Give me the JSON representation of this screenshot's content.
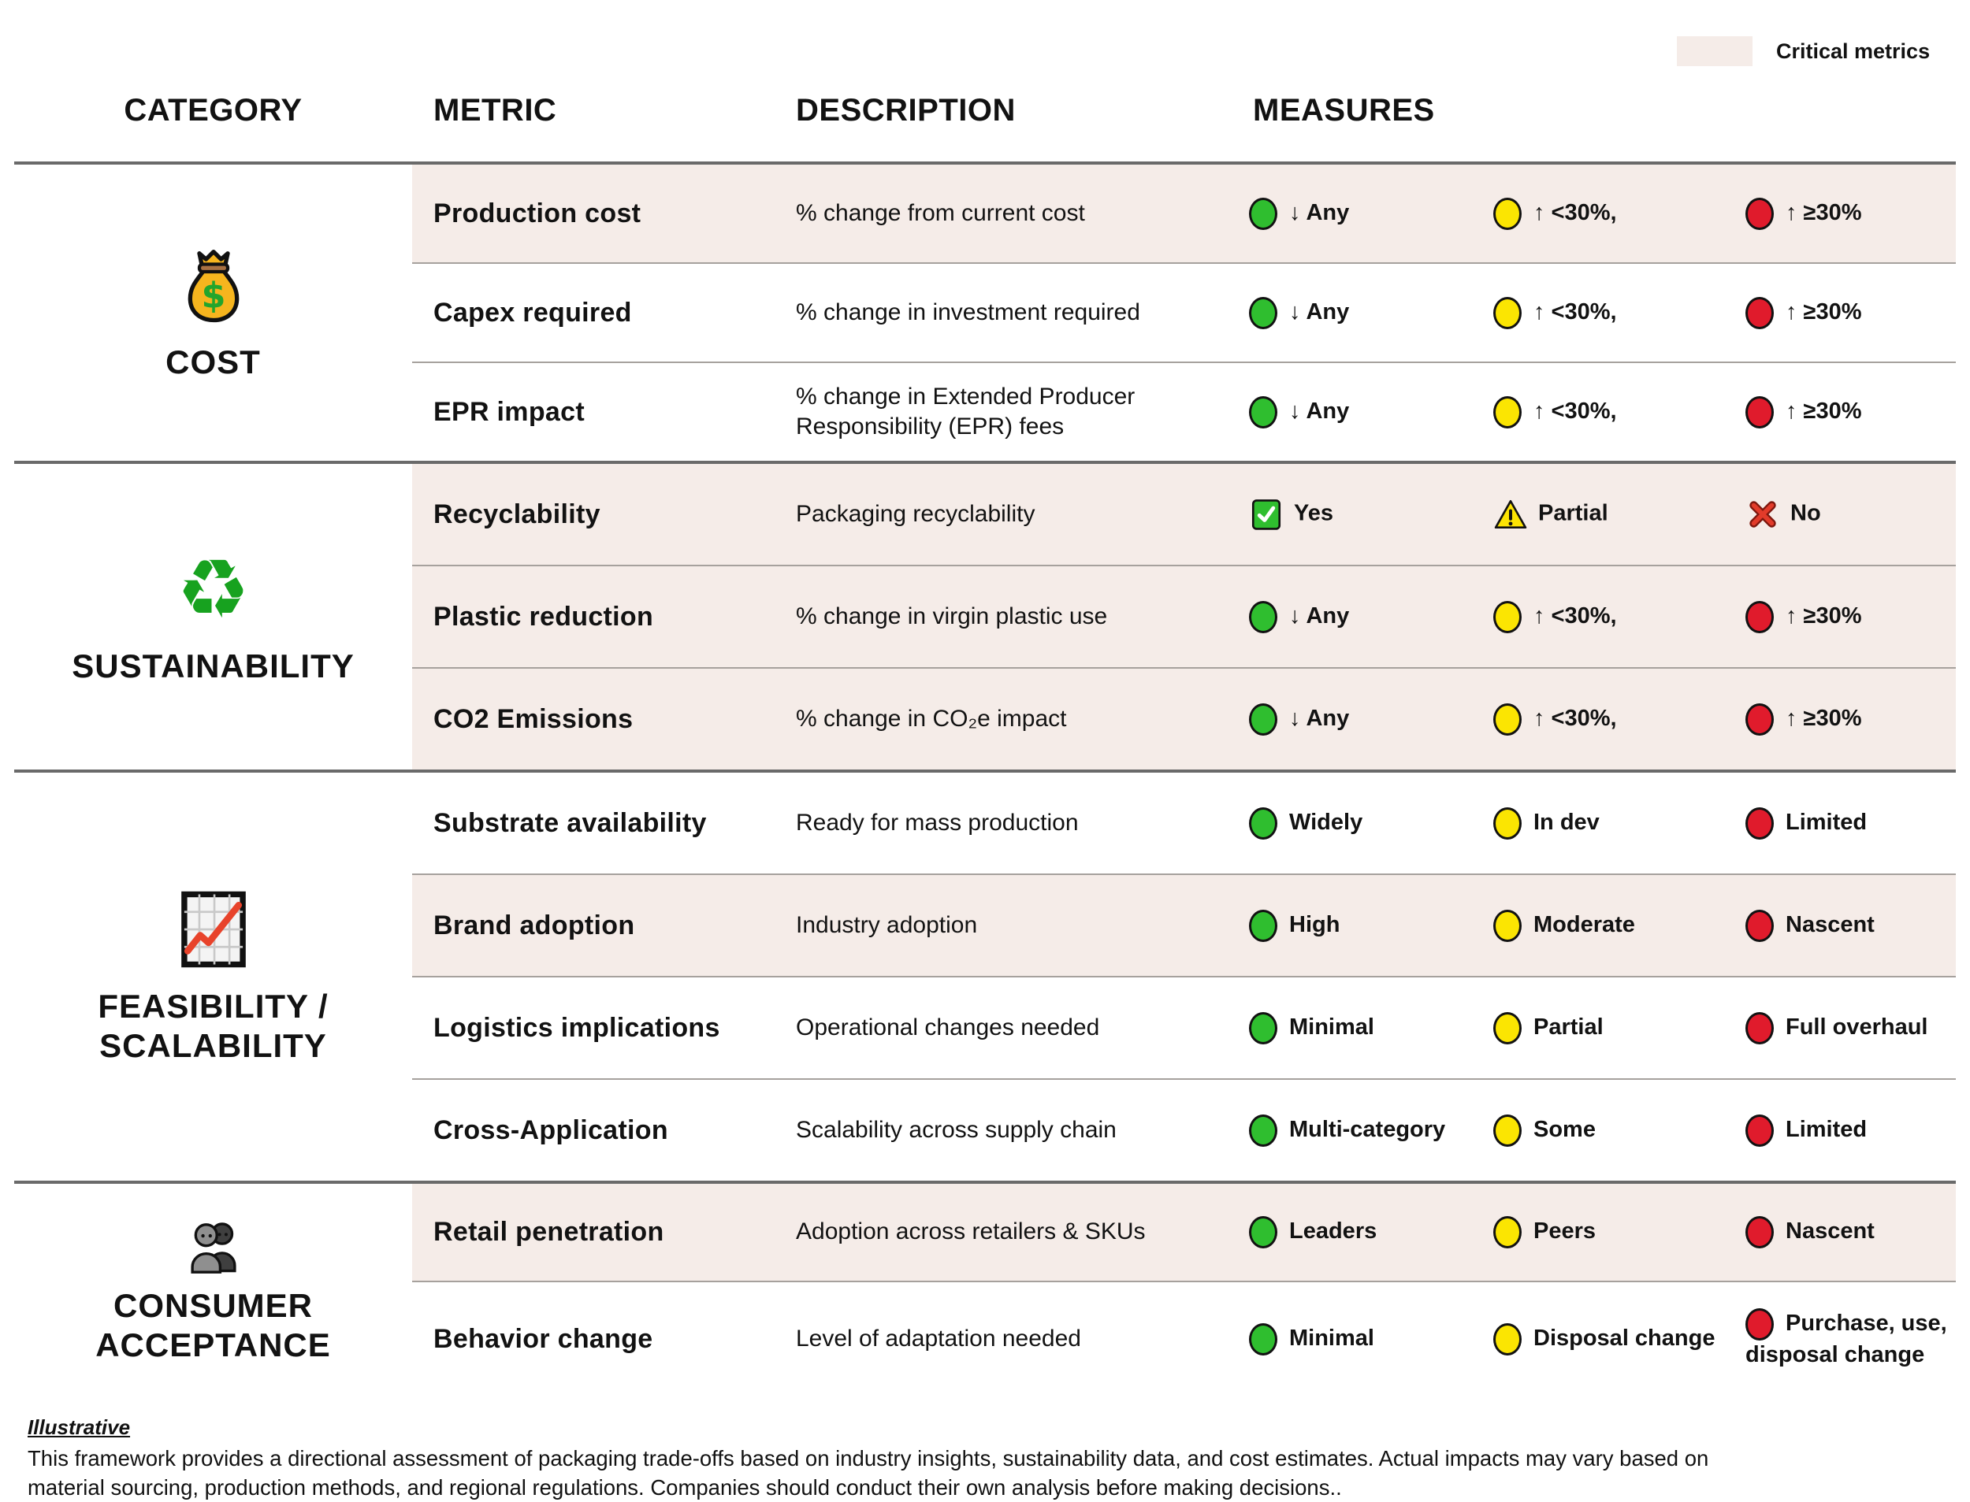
{
  "legend": {
    "label": "Critical metrics"
  },
  "colors": {
    "critical_row": "#f5ece8",
    "green": "#2fbe2f",
    "yellow": "#fbe502",
    "red": "#e01b2c"
  },
  "columns": {
    "category": "CATEGORY",
    "metric": "METRIC",
    "description": "DESCRIPTION",
    "measures": "MEASURES"
  },
  "sections": [
    {
      "category": {
        "id": "cost",
        "lines": [
          "COST"
        ],
        "icon": "money-bag-icon"
      },
      "rows": [
        {
          "metric": "Production cost",
          "description": "% change from current cost",
          "critical": true,
          "measures": [
            {
              "icon": "circle",
              "level": "green",
              "label": "↓ Any"
            },
            {
              "icon": "circle",
              "level": "yellow",
              "label": "↑ <30%,"
            },
            {
              "icon": "circle",
              "level": "red",
              "label": "↑ ≥30%"
            }
          ]
        },
        {
          "metric": "Capex required",
          "description": "% change in investment required",
          "critical": false,
          "measures": [
            {
              "icon": "circle",
              "level": "green",
              "label": "↓ Any"
            },
            {
              "icon": "circle",
              "level": "yellow",
              "label": "↑ <30%,"
            },
            {
              "icon": "circle",
              "level": "red",
              "label": "↑ ≥30%"
            }
          ]
        },
        {
          "metric": "EPR impact",
          "description": "% change in Extended Producer Responsibility (EPR) fees",
          "critical": false,
          "measures": [
            {
              "icon": "circle",
              "level": "green",
              "label": "↓ Any"
            },
            {
              "icon": "circle",
              "level": "yellow",
              "label": "↑ <30%,"
            },
            {
              "icon": "circle",
              "level": "red",
              "label": "↑ ≥30%"
            }
          ]
        }
      ]
    },
    {
      "category": {
        "id": "sustainability",
        "lines": [
          "SUSTAINABILITY"
        ],
        "icon": "recycle-icon"
      },
      "rows": [
        {
          "metric": "Recyclability",
          "description": "Packaging recyclability",
          "critical": true,
          "measures": [
            {
              "icon": "check",
              "level": "green",
              "label": "Yes"
            },
            {
              "icon": "warning",
              "level": "yellow",
              "label": "Partial"
            },
            {
              "icon": "cross",
              "level": "red",
              "label": "No"
            }
          ]
        },
        {
          "metric": "Plastic reduction",
          "description": "% change in virgin plastic use",
          "critical": true,
          "measures": [
            {
              "icon": "circle",
              "level": "green",
              "label": "↓ Any"
            },
            {
              "icon": "circle",
              "level": "yellow",
              "label": "↑ <30%,"
            },
            {
              "icon": "circle",
              "level": "red",
              "label": "↑ ≥30%"
            }
          ]
        },
        {
          "metric": "CO2 Emissions",
          "description": "% change in CO₂e impact",
          "critical": true,
          "measures": [
            {
              "icon": "circle",
              "level": "green",
              "label": "↓ Any"
            },
            {
              "icon": "circle",
              "level": "yellow",
              "label": "↑ <30%,"
            },
            {
              "icon": "circle",
              "level": "red",
              "label": "↑ ≥30%"
            }
          ]
        }
      ]
    },
    {
      "category": {
        "id": "feasibility-scalability",
        "lines": [
          "FEASIBILITY /",
          "SCALABILITY"
        ],
        "icon": "chart-increasing-icon"
      },
      "rows": [
        {
          "metric": "Substrate availability",
          "description": "Ready for mass production",
          "critical": false,
          "measures": [
            {
              "icon": "circle",
              "level": "green",
              "label": "Widely"
            },
            {
              "icon": "circle",
              "level": "yellow",
              "label": "In dev"
            },
            {
              "icon": "circle",
              "level": "red",
              "label": "Limited"
            }
          ]
        },
        {
          "metric": "Brand adoption",
          "description": "Industry adoption",
          "critical": true,
          "measures": [
            {
              "icon": "circle",
              "level": "green",
              "label": "High"
            },
            {
              "icon": "circle",
              "level": "yellow",
              "label": "Moderate"
            },
            {
              "icon": "circle",
              "level": "red",
              "label": "Nascent"
            }
          ]
        },
        {
          "metric": "Logistics implications",
          "description": "Operational changes needed",
          "critical": false,
          "measures": [
            {
              "icon": "circle",
              "level": "green",
              "label": "Minimal"
            },
            {
              "icon": "circle",
              "level": "yellow",
              "label": "Partial"
            },
            {
              "icon": "circle",
              "level": "red",
              "label": "Full overhaul"
            }
          ]
        },
        {
          "metric": "Cross-Application",
          "description": "Scalability across supply chain",
          "critical": false,
          "measures": [
            {
              "icon": "circle",
              "level": "green",
              "label": "Multi-category"
            },
            {
              "icon": "circle",
              "level": "yellow",
              "label": "Some"
            },
            {
              "icon": "circle",
              "level": "red",
              "label": "Limited"
            }
          ]
        }
      ]
    },
    {
      "category": {
        "id": "consumer-acceptance",
        "lines": [
          "CONSUMER",
          "ACCEPTANCE"
        ],
        "icon": "people-icon"
      },
      "rows": [
        {
          "metric": "Retail penetration",
          "description": "Adoption across retailers & SKUs",
          "critical": true,
          "measures": [
            {
              "icon": "circle",
              "level": "green",
              "label": "Leaders"
            },
            {
              "icon": "circle",
              "level": "yellow",
              "label": "Peers"
            },
            {
              "icon": "circle",
              "level": "red",
              "label": "Nascent"
            }
          ]
        },
        {
          "metric": "Behavior change",
          "description": "Level of adaptation needed",
          "critical": false,
          "measures": [
            {
              "icon": "circle",
              "level": "green",
              "label": "Minimal"
            },
            {
              "icon": "circle",
              "level": "yellow",
              "label": "Disposal change"
            },
            {
              "icon": "circle",
              "level": "red",
              "label": "Purchase, use, disposal change"
            }
          ]
        }
      ]
    }
  ],
  "footer": {
    "tag": "Illustrative",
    "text": "This framework provides a directional assessment of packaging trade-offs based on industry insights, sustainability data, and cost estimates. Actual impacts may vary based on material sourcing, production methods, and regional regulations. Companies should conduct their own analysis before making decisions.."
  }
}
